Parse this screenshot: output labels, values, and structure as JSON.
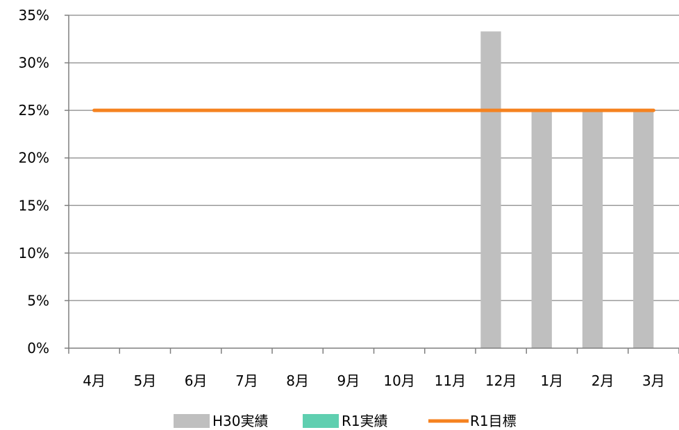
{
  "chart_data": {
    "type": "bar",
    "categories": [
      "4月",
      "5月",
      "6月",
      "7月",
      "8月",
      "9月",
      "10月",
      "11月",
      "12月",
      "1月",
      "2月",
      "3月"
    ],
    "series": [
      {
        "name": "H30実績",
        "type": "bar",
        "color": "#bfbfbf",
        "values": [
          null,
          null,
          null,
          null,
          null,
          null,
          null,
          null,
          33.3,
          25,
          25,
          25
        ]
      },
      {
        "name": "R1実績",
        "type": "bar",
        "color": "#5fcfb0",
        "values": [
          null,
          null,
          null,
          null,
          null,
          null,
          null,
          null,
          null,
          null,
          null,
          null
        ]
      },
      {
        "name": "R1目標",
        "type": "line",
        "color": "#f58220",
        "values": [
          25,
          25,
          25,
          25,
          25,
          25,
          25,
          25,
          25,
          25,
          25,
          25
        ]
      }
    ],
    "y_ticks": [
      "0%",
      "5%",
      "10%",
      "15%",
      "20%",
      "25%",
      "30%",
      "35%"
    ],
    "ylim": [
      0,
      35
    ],
    "grid": true,
    "legend_position": "bottom"
  }
}
